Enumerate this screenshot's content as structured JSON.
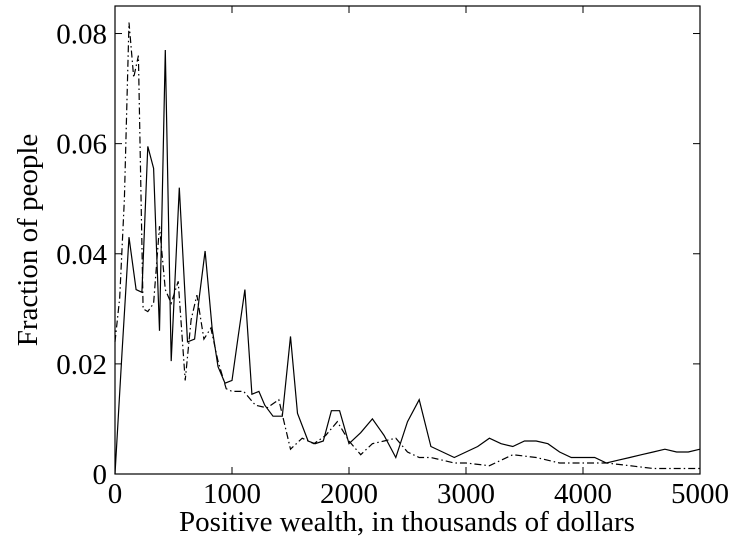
{
  "chart_data": {
    "type": "line",
    "title": "",
    "xlabel": "Positive wealth, in thousands of dollars",
    "ylabel": "Fraction of people",
    "xlim": [
      0,
      5000
    ],
    "ylim": [
      0,
      0.085
    ],
    "xticks": [
      0,
      1000,
      2000,
      3000,
      4000,
      5000
    ],
    "xtick_labels": [
      "0",
      "1000",
      "2000",
      "3000",
      "4000",
      "5000"
    ],
    "yticks": [
      0,
      0.02,
      0.04,
      0.06,
      0.08
    ],
    "ytick_labels": [
      "0",
      "0.02",
      "0.04",
      "0.06",
      "0.08"
    ],
    "grid": false,
    "legend": "none",
    "series": [
      {
        "style": "solid",
        "color": "#000000",
        "x": [
          0,
          30,
          60,
          120,
          180,
          230,
          280,
          330,
          380,
          430,
          480,
          550,
          620,
          680,
          720,
          770,
          830,
          880,
          940,
          1000,
          1050,
          1110,
          1170,
          1230,
          1280,
          1350,
          1430,
          1500,
          1560,
          1650,
          1710,
          1780,
          1850,
          1920,
          2000,
          2100,
          2200,
          2300,
          2400,
          2500,
          2600,
          2700,
          2800,
          2900,
          3000,
          3100,
          3200,
          3300,
          3400,
          3500,
          3600,
          3700,
          3800,
          3900,
          4000,
          4100,
          4200,
          4300,
          4400,
          4500,
          4600,
          4700,
          4800,
          4900,
          5000
        ],
        "y": [
          0,
          0.011,
          0.022,
          0.043,
          0.0335,
          0.033,
          0.0595,
          0.0555,
          0.026,
          0.077,
          0.0205,
          0.052,
          0.024,
          0.0245,
          0.032,
          0.0405,
          0.0265,
          0.0195,
          0.0165,
          0.017,
          0.0245,
          0.0335,
          0.0145,
          0.015,
          0.0125,
          0.0105,
          0.0105,
          0.025,
          0.011,
          0.006,
          0.0055,
          0.006,
          0.0115,
          0.0115,
          0.0055,
          0.0075,
          0.01,
          0.007,
          0.003,
          0.0095,
          0.0135,
          0.005,
          0.004,
          0.003,
          0.004,
          0.005,
          0.0065,
          0.0055,
          0.005,
          0.006,
          0.006,
          0.0055,
          0.004,
          0.003,
          0.003,
          0.003,
          0.002,
          0.0025,
          0.003,
          0.0035,
          0.004,
          0.0045,
          0.004,
          0.004,
          0.0045
        ]
      },
      {
        "style": "dashed",
        "color": "#000000",
        "x": [
          0,
          40,
          80,
          120,
          160,
          200,
          240,
          280,
          330,
          380,
          430,
          480,
          540,
          600,
          650,
          700,
          760,
          820,
          880,
          950,
          1000,
          1100,
          1200,
          1300,
          1400,
          1500,
          1600,
          1700,
          1800,
          1900,
          2000,
          2100,
          2200,
          2300,
          2400,
          2500,
          2600,
          2700,
          2800,
          2900,
          3000,
          3200,
          3400,
          3600,
          3800,
          4000,
          4200,
          4400,
          4600,
          4800,
          5000
        ],
        "y": [
          0.024,
          0.032,
          0.05,
          0.082,
          0.072,
          0.076,
          0.03,
          0.0295,
          0.031,
          0.045,
          0.0335,
          0.031,
          0.035,
          0.017,
          0.028,
          0.0325,
          0.0245,
          0.0265,
          0.0205,
          0.0155,
          0.015,
          0.015,
          0.0125,
          0.012,
          0.0135,
          0.0045,
          0.0065,
          0.0055,
          0.007,
          0.0095,
          0.006,
          0.0035,
          0.0055,
          0.006,
          0.0065,
          0.004,
          0.003,
          0.003,
          0.0025,
          0.002,
          0.002,
          0.0015,
          0.0035,
          0.003,
          0.002,
          0.002,
          0.002,
          0.0015,
          0.001,
          0.001,
          0.001
        ]
      }
    ]
  }
}
